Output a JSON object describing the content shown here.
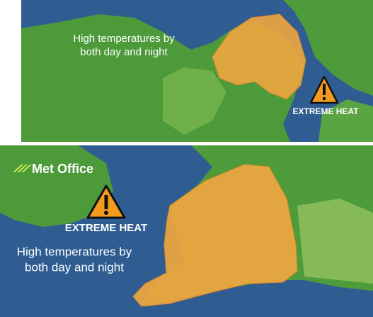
{
  "top_panel": {
    "caption_lines": [
      "High temperatures by",
      "both day and night"
    ],
    "warning_label": "EXTREME HEAT"
  },
  "bottom_panel": {
    "logo_text": "Met Office",
    "warning_label": "EXTREME HEAT",
    "caption_lines": [
      "High temperatures by",
      "both day and night"
    ]
  }
}
